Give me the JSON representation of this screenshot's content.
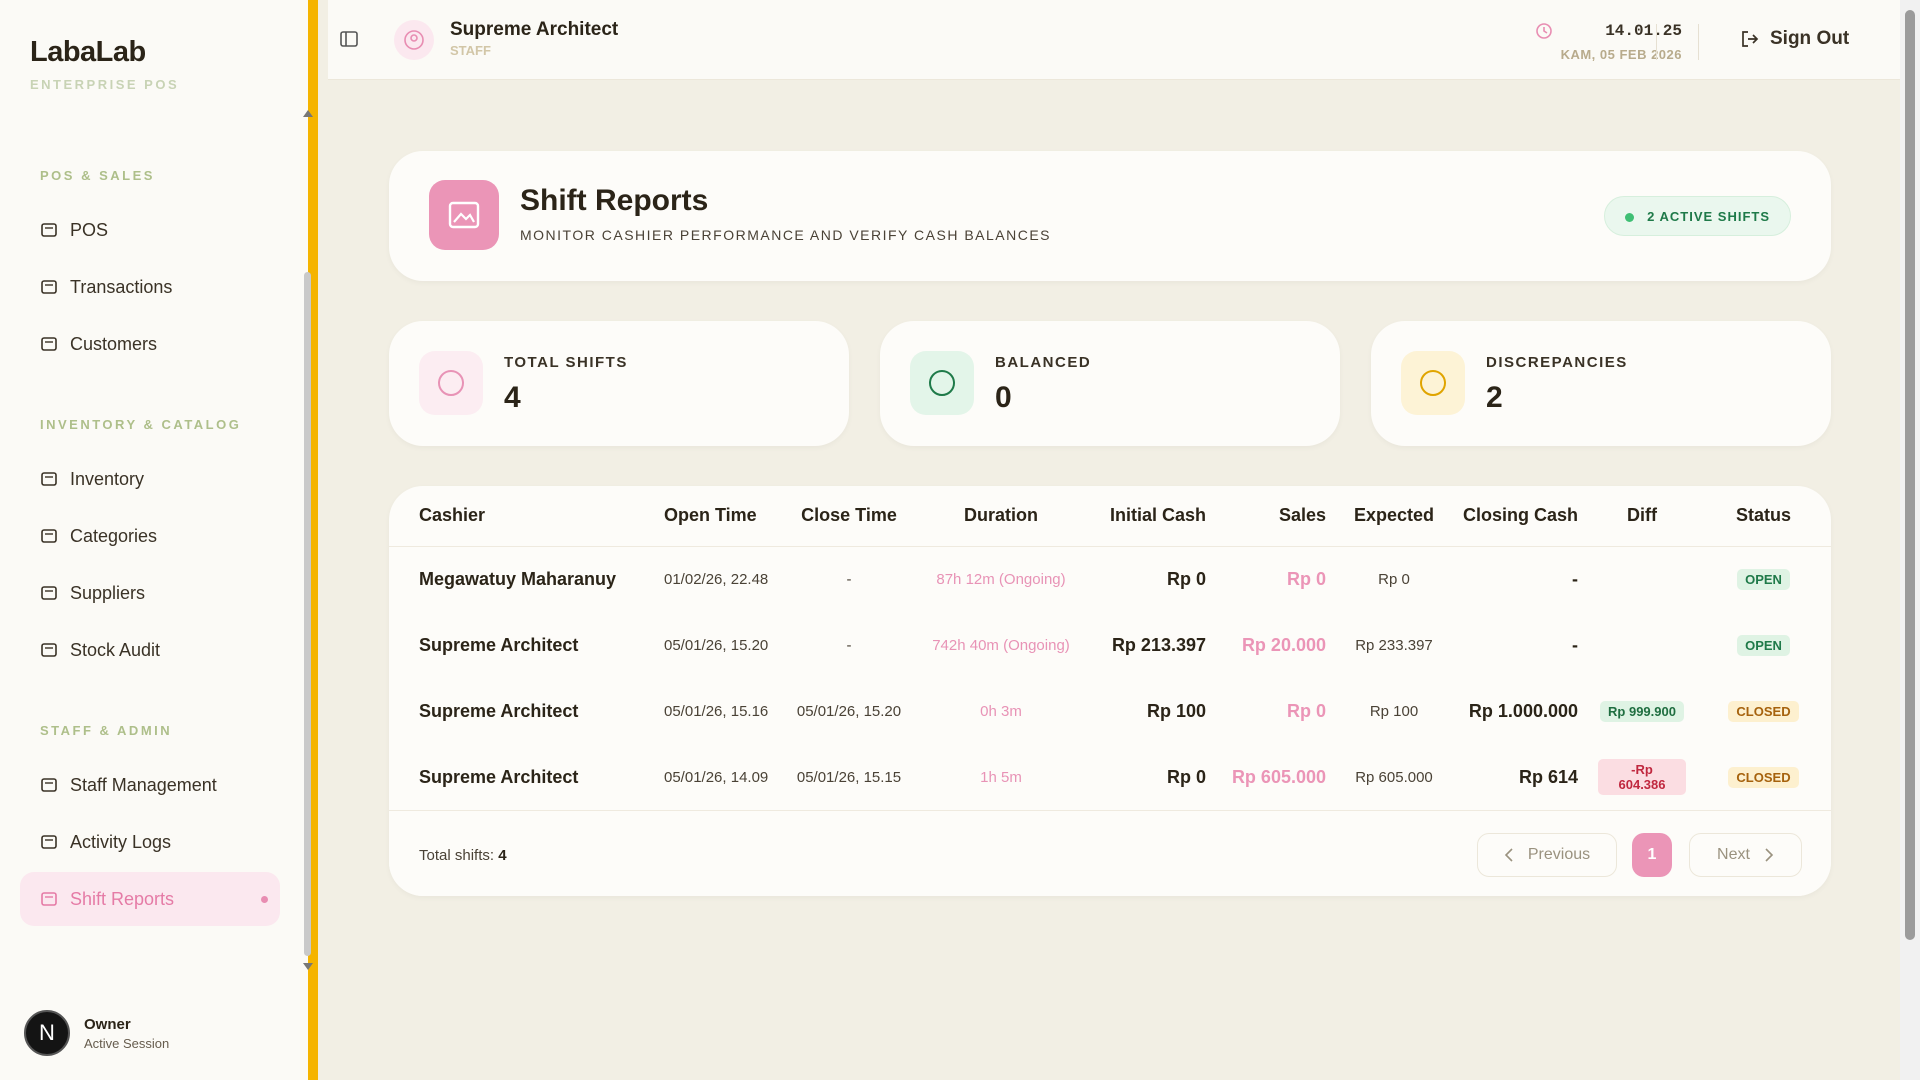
{
  "sidebar": {
    "brand": "LabaLab",
    "subtitle": "ENTERPRISE POS",
    "sections": [
      {
        "title": "POS & SALES",
        "items": [
          "POS",
          "Transactions",
          "Customers"
        ]
      },
      {
        "title": "INVENTORY & CATALOG",
        "items": [
          "Inventory",
          "Categories",
          "Suppliers",
          "Stock Audit"
        ]
      },
      {
        "title": "STAFF & ADMIN",
        "items": [
          "Staff Management",
          "Activity Logs",
          "Shift Reports"
        ]
      }
    ],
    "user": {
      "initial": "N",
      "name": "Owner",
      "status": "Active Session"
    }
  },
  "header": {
    "user_name": "Supreme Architect",
    "user_role": "STAFF",
    "time": "14.01.25",
    "date": "KAM, 05 FEB 2026",
    "sign_out": "Sign Out"
  },
  "page": {
    "title": "Shift Reports",
    "subtitle": "MONITOR CASHIER PERFORMANCE AND VERIFY CASH BALANCES",
    "badge": "2 ACTIVE SHIFTS"
  },
  "stats": [
    {
      "label": "TOTAL SHIFTS",
      "value": "4"
    },
    {
      "label": "BALANCED",
      "value": "0"
    },
    {
      "label": "DISCREPANCIES",
      "value": "2"
    }
  ],
  "table": {
    "columns": [
      "Cashier",
      "Open Time",
      "Close Time",
      "Duration",
      "Initial Cash",
      "Sales",
      "Expected",
      "Closing Cash",
      "Diff",
      "Status"
    ],
    "rows": [
      [
        "Megawatuy Maharanuy",
        "01/02/26, 22.48",
        "-",
        "87h 12m (Ongoing)",
        "Rp 0",
        "Rp 0",
        "Rp 0",
        "-",
        "",
        "OPEN"
      ],
      [
        "Supreme Architect",
        "05/01/26, 15.20",
        "-",
        "742h 40m (Ongoing)",
        "Rp 213.397",
        "Rp 20.000",
        "Rp 233.397",
        "-",
        "",
        "OPEN"
      ],
      [
        "Supreme Architect",
        "05/01/26, 15.16",
        "05/01/26, 15.20",
        "0h 3m",
        "Rp 100",
        "Rp 0",
        "Rp 100",
        "Rp 1.000.000",
        "Rp 999.900",
        "CLOSED"
      ],
      [
        "Supreme Architect",
        "05/01/26, 14.09",
        "05/01/26, 15.15",
        "1h 5m",
        "Rp 0",
        "Rp 605.000",
        "Rp 605.000",
        "Rp 614",
        "-Rp 604.386",
        "CLOSED"
      ]
    ],
    "total_label": "Total shifts:",
    "total_value": "4",
    "pagination": {
      "previous": "Previous",
      "page": "1",
      "next": "Next"
    }
  }
}
